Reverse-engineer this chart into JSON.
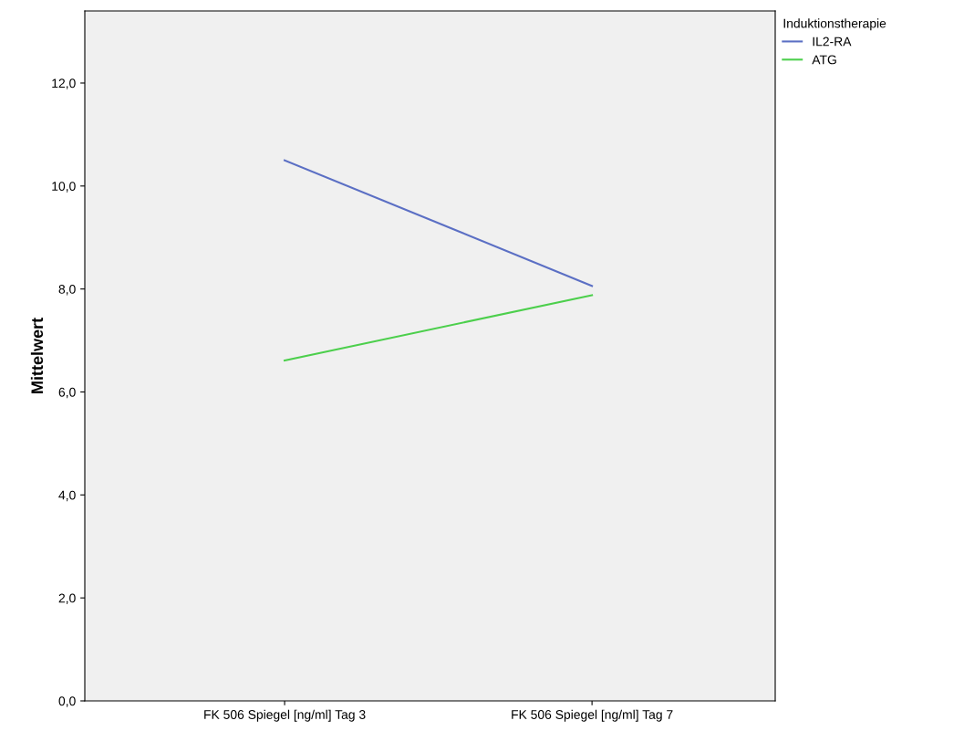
{
  "chart_data": {
    "type": "line",
    "ylabel": "Mittelwert",
    "legend_title": "Induktionstherapie",
    "legend": "top right",
    "categories": [
      "FK 506 Spiegel [ng/ml] Tag 3",
      "FK 506 Spiegel [ng/ml] Tag 7"
    ],
    "series": [
      {
        "name": "IL2-RA",
        "color": "#5b6fc4",
        "values": [
          10.5,
          8.06
        ]
      },
      {
        "name": "ATG",
        "color": "#4ccf4c",
        "values": [
          6.61,
          7.88
        ]
      }
    ],
    "ylim": [
      0,
      13.4
    ],
    "yticks": [
      {
        "value": 0,
        "label": "0,0"
      },
      {
        "value": 2,
        "label": "2,0"
      },
      {
        "value": 4,
        "label": "4,0"
      },
      {
        "value": 6,
        "label": "6,0"
      },
      {
        "value": 8,
        "label": "8,0"
      },
      {
        "value": 10,
        "label": "10,0"
      },
      {
        "value": 12,
        "label": "12,0"
      }
    ],
    "grid": false
  }
}
